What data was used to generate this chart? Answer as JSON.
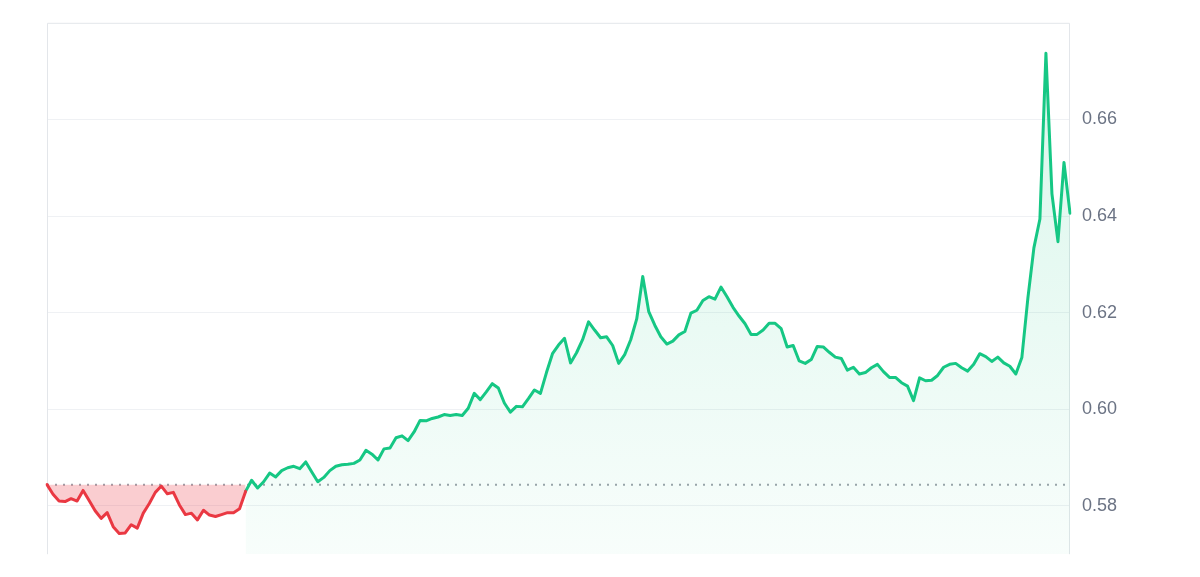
{
  "chart_data": {
    "type": "area",
    "categories": [
      null,
      null,
      null,
      null,
      null,
      null,
      null,
      null,
      null,
      null,
      null,
      null,
      null,
      null,
      null,
      null,
      null,
      null,
      null,
      null,
      null,
      null,
      null,
      null,
      null,
      null,
      null,
      null,
      null,
      null,
      null,
      null,
      null,
      null,
      null,
      null,
      null,
      null,
      null,
      null,
      null,
      null,
      null,
      null,
      null,
      null,
      null,
      null,
      null,
      null,
      null,
      null,
      null,
      null,
      null,
      null,
      null,
      null,
      null,
      null,
      null,
      null,
      null,
      null,
      null,
      null,
      null,
      null,
      null,
      null,
      null,
      null,
      null,
      null,
      null,
      null,
      null,
      null,
      null,
      null,
      null,
      null,
      null,
      null,
      null,
      null,
      null,
      null,
      null,
      null,
      null,
      null,
      null,
      null,
      null,
      null,
      null,
      null,
      null,
      null,
      null,
      null,
      null,
      null,
      null,
      null,
      null,
      null,
      null,
      null,
      null,
      null,
      null,
      null,
      null,
      null,
      null,
      null,
      null,
      null,
      null,
      null,
      null,
      null,
      null,
      null,
      null,
      null,
      null,
      null,
      null,
      null,
      null,
      null,
      null,
      null,
      null,
      null,
      null,
      null,
      null,
      null,
      null,
      null,
      null,
      null,
      null,
      null,
      null,
      null,
      null,
      null,
      null,
      null,
      null,
      null,
      null,
      null,
      null,
      null,
      null,
      null,
      null,
      null,
      null,
      null,
      null,
      null,
      null,
      null,
      null
    ],
    "series": [
      {
        "type": "line",
        "color": "#ea3943",
        "values": [
          0.5844,
          0.5824,
          0.581,
          0.5809,
          0.5815,
          0.581,
          0.5832,
          0.5811,
          0.579,
          0.5774,
          0.5786,
          0.5757,
          0.5743,
          0.5744,
          0.5761,
          0.5754,
          0.5785,
          0.5805,
          0.5828,
          0.5841,
          0.5825,
          0.5828,
          0.5802,
          0.5782,
          0.5785,
          0.5771,
          0.5791,
          0.5781,
          0.5778,
          0.5782,
          0.5786,
          0.5786,
          0.5794,
          0.583,
          null,
          null,
          null,
          null,
          null,
          null,
          null,
          null,
          null,
          null,
          null,
          null,
          null,
          null,
          null,
          null,
          null,
          null,
          null,
          null,
          null,
          null,
          null,
          null,
          null,
          null,
          null,
          null,
          null,
          null,
          null,
          null,
          null,
          null,
          null,
          null,
          null,
          null,
          null,
          null,
          null,
          null,
          null,
          null,
          null,
          null,
          null,
          null,
          null,
          null,
          null,
          null,
          null,
          null,
          null,
          null,
          null,
          null,
          null,
          null,
          null,
          null,
          null,
          null,
          null,
          null,
          null,
          null,
          null,
          null,
          null,
          null,
          null,
          null,
          null,
          null,
          null,
          null,
          null,
          null,
          null,
          null,
          null,
          null,
          null,
          null,
          null,
          null,
          null,
          null,
          null,
          null,
          null,
          null,
          null,
          null,
          null,
          null,
          null,
          null,
          null,
          null,
          null,
          null,
          null,
          null,
          null,
          null,
          null,
          null,
          null,
          null,
          null,
          null,
          null,
          null,
          null,
          null,
          null,
          null,
          null,
          null,
          null,
          null,
          null,
          null,
          null,
          null,
          null,
          null,
          null,
          null,
          null,
          null,
          null,
          null,
          null
        ],
        "lower": [
          0.5844,
          0.5824,
          0.581,
          0.5809,
          0.5815,
          0.581,
          0.5832,
          0.5811,
          0.579,
          0.5774,
          0.5786,
          0.5757,
          0.5743,
          0.5744,
          0.5761,
          0.5754,
          0.5785,
          0.5805,
          0.5828,
          0.5841,
          0.5825,
          0.5828,
          0.5802,
          0.5782,
          0.5785,
          0.5771,
          0.5791,
          0.5781,
          0.5778,
          0.5782,
          0.5786,
          0.5786,
          0.5794,
          0.583,
          null,
          null,
          null,
          null,
          null,
          null,
          null,
          null,
          null,
          null,
          null,
          null,
          null,
          null,
          null,
          null,
          null,
          null,
          null,
          null,
          null,
          null,
          null,
          null,
          null,
          null,
          null,
          null,
          null,
          null,
          null,
          null,
          null,
          null,
          null,
          null,
          null,
          null,
          null,
          null,
          null,
          null,
          null,
          null,
          null,
          null,
          null,
          null,
          null,
          null,
          null,
          null,
          null,
          null,
          null,
          null,
          null,
          null,
          null,
          null,
          null,
          null,
          null,
          null,
          null,
          null,
          null,
          null,
          null,
          null,
          null,
          null,
          null,
          null,
          null,
          null,
          null,
          null,
          null,
          null,
          null,
          null,
          null,
          null,
          null,
          null,
          null,
          null,
          null,
          null,
          null,
          null,
          null,
          null,
          null,
          null,
          null,
          null,
          null,
          null,
          null,
          null,
          null,
          null,
          null,
          null,
          null,
          null,
          null,
          null,
          null,
          null,
          null,
          null,
          null,
          null,
          null,
          null,
          null,
          null,
          null,
          null,
          null,
          null,
          null,
          null,
          null,
          null,
          null,
          null,
          null,
          null,
          null,
          null,
          null,
          null,
          null
        ],
        "upper": [
          0.5844,
          0.5844,
          0.5844,
          0.5844,
          0.5844,
          0.5844,
          0.5844,
          0.5844,
          0.5844,
          0.5844,
          0.5844,
          0.5844,
          0.5844,
          0.5844,
          0.5844,
          0.5844,
          0.5844,
          0.5844,
          0.5844,
          0.5844,
          0.5844,
          0.5844,
          0.5844,
          0.5844,
          0.5844,
          0.5844,
          0.5844,
          0.5844,
          0.5844,
          0.5844,
          0.5844,
          0.5844,
          0.5844,
          0.5844,
          null,
          null,
          null,
          null,
          null,
          null,
          null,
          null,
          null,
          null,
          null,
          null,
          null,
          null,
          null,
          null,
          null,
          null,
          null,
          null,
          null,
          null,
          null,
          null,
          null,
          null,
          null,
          null,
          null,
          null,
          null,
          null,
          null,
          null,
          null,
          null,
          null,
          null,
          null,
          null,
          null,
          null,
          null,
          null,
          null,
          null,
          null,
          null,
          null,
          null,
          null,
          null,
          null,
          null,
          null,
          null,
          null,
          null,
          null,
          null,
          null,
          null,
          null,
          null,
          null,
          null,
          null,
          null,
          null,
          null,
          null,
          null,
          null,
          null,
          null,
          null,
          null,
          null,
          null,
          null,
          null,
          null,
          null,
          null,
          null,
          null,
          null,
          null,
          null,
          null,
          null,
          null,
          null,
          null,
          null,
          null,
          null,
          null,
          null,
          null,
          null,
          null,
          null,
          null,
          null,
          null,
          null,
          null,
          null,
          null,
          null,
          null,
          null,
          null,
          null,
          null,
          null,
          null,
          null,
          null,
          null,
          null,
          null,
          null,
          null,
          null,
          null,
          null,
          null,
          null,
          null,
          null,
          null,
          null,
          null,
          null,
          null
        ]
      },
      {
        "color": "#16c784",
        "values": [
          null,
          null,
          null,
          null,
          null,
          null,
          null,
          null,
          null,
          null,
          null,
          null,
          null,
          null,
          null,
          null,
          null,
          null,
          null,
          null,
          null,
          null,
          null,
          null,
          null,
          null,
          null,
          null,
          null,
          null,
          null,
          null,
          null,
          0.583,
          0.5853,
          0.5837,
          0.585,
          0.5868,
          0.586,
          0.5873,
          0.5879,
          0.5882,
          0.5877,
          0.5891,
          0.587,
          0.585,
          0.5859,
          0.5873,
          0.5882,
          0.5885,
          0.5886,
          0.5888,
          0.5895,
          0.5915,
          0.5907,
          0.5895,
          0.5918,
          0.592,
          0.5941,
          0.5945,
          0.5935,
          0.5953,
          0.5977,
          0.5976,
          0.5981,
          0.5984,
          0.5989,
          0.5987,
          0.5989,
          0.5987,
          0.6002,
          0.6033,
          0.602,
          0.6036,
          0.6053,
          0.6044,
          0.6013,
          0.5994,
          0.6006,
          0.6005,
          0.6022,
          0.604,
          0.6033,
          0.6076,
          0.6115,
          0.6133,
          0.6147,
          0.6096,
          0.6117,
          0.6144,
          0.6181,
          0.6164,
          0.6148,
          0.615,
          0.6132,
          0.6095,
          0.6113,
          0.6144,
          0.6187,
          0.6275,
          0.6202,
          0.6174,
          0.615,
          0.6135,
          0.6141,
          0.6154,
          0.6161,
          0.6199,
          0.6205,
          0.6225,
          0.6233,
          0.6228,
          0.6253,
          0.6233,
          0.6211,
          0.6193,
          0.6177,
          0.6155,
          0.6155,
          0.6164,
          0.6178,
          0.6178,
          0.6167,
          0.6129,
          0.6132,
          0.61,
          0.6095,
          0.6103,
          0.613,
          0.6129,
          0.6118,
          0.6108,
          0.6105,
          0.6081,
          0.6087,
          0.6073,
          0.6076,
          0.6086,
          0.6093,
          0.6078,
          0.6066,
          0.6066,
          0.6055,
          0.6048,
          0.6018,
          0.6065,
          0.6059,
          0.606,
          0.607,
          0.6087,
          0.6093,
          0.6095,
          0.6086,
          0.6079,
          0.6093,
          0.6115,
          0.6109,
          0.6099,
          0.6108,
          0.6096,
          0.6089,
          0.6073,
          0.6107,
          0.623,
          0.6334,
          0.6394,
          0.6737,
          0.6446,
          0.6347,
          0.6511,
          0.6406
        ]
      }
    ],
    "ylim": [
      0.57,
      0.68
    ],
    "yticks": [
      0.58,
      {
        "value": 0.6,
        "label": "0.60"
      },
      0.62,
      0.64,
      0.66
    ],
    "ref_lines": [
      {
        "axis": "y",
        "value": 0.5844,
        "line_style": "dotted",
        "color": "#9ea3ab"
      }
    ],
    "grid": "y",
    "marker": "none",
    "tick_labels": "y"
  }
}
